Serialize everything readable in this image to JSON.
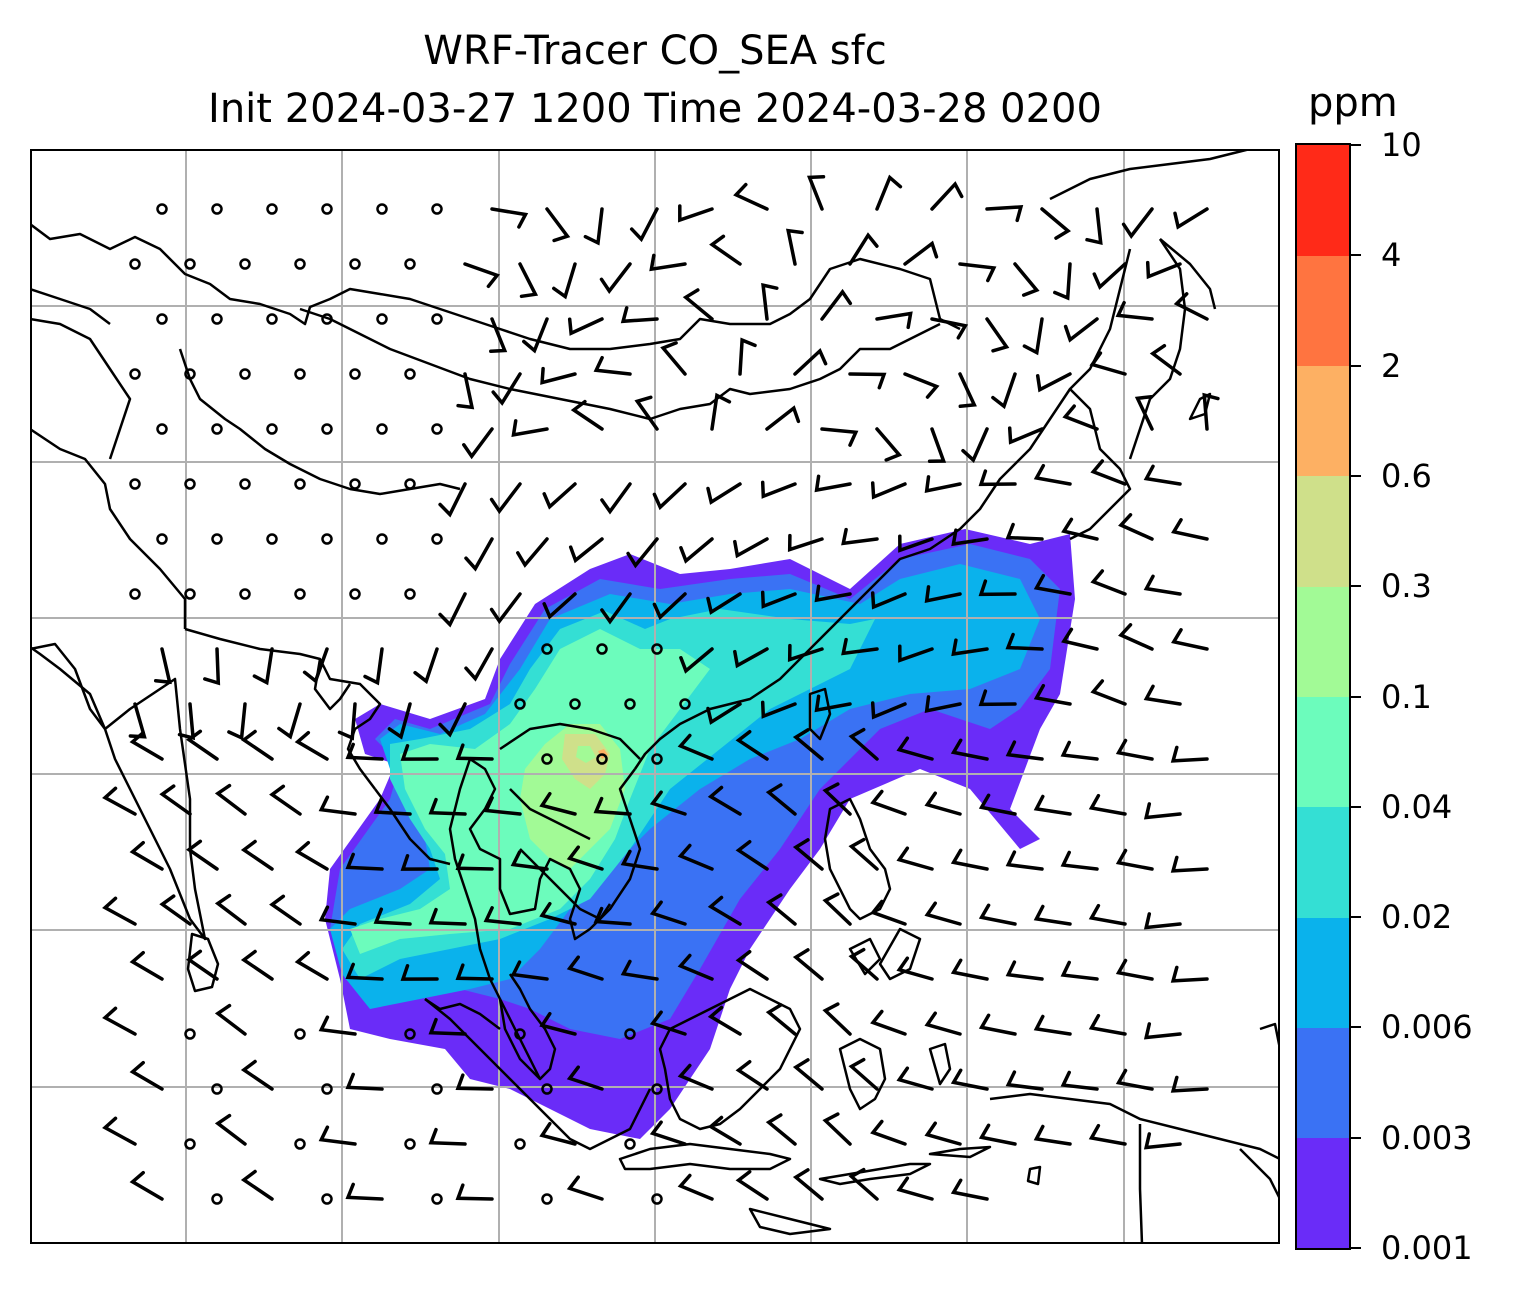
{
  "title": {
    "line1": "WRF-Tracer CO_SEA sfc",
    "line2": "Init 2024-03-27 1200 Time 2024-03-28 0200"
  },
  "colorbar": {
    "unit": "ppm",
    "levels": [
      "0.001",
      "0.003",
      "0.006",
      "0.02",
      "0.04",
      "0.1",
      "0.3",
      "0.6",
      "2",
      "4",
      "10"
    ],
    "colors": [
      "#6a2cf8",
      "#3a72f4",
      "#0ab2ec",
      "#34dfd4",
      "#6cfcbc",
      "#a2fa96",
      "#cfe08a",
      "#fdb063",
      "#ff7440",
      "#ff2a18"
    ]
  },
  "map": {
    "gridline_color": "#b0b0b0",
    "coastline_color": "#000000",
    "wind_barb_color": "#000000",
    "calm_marker": "circle"
  }
}
